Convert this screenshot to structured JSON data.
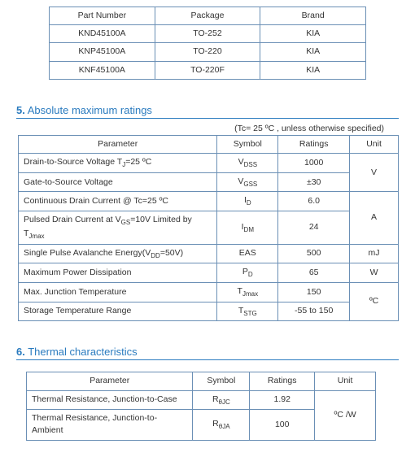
{
  "table1": {
    "headers": [
      "Part Number",
      "Package",
      "Brand"
    ],
    "rows": [
      [
        "KND45100A",
        "TO-252",
        "KIA"
      ],
      [
        "KNP45100A",
        "TO-220",
        "KIA"
      ],
      [
        "KNF45100A",
        "TO-220F",
        "KIA"
      ]
    ]
  },
  "section5": {
    "num": "5.",
    "title": "Absolute maximum ratings",
    "condition": "(Tc= 25 ºC , unless otherwise specified)"
  },
  "table2": {
    "headers": [
      "Parameter",
      "Symbol",
      "Ratings",
      "Unit"
    ],
    "rows": [
      {
        "param_html": "Drain-to-Source Voltage T<span class='sub'>J</span>=25 ºC",
        "sym_html": "V<span class='sub'>DSS</span>",
        "rating": "1000",
        "unit": "V",
        "unit_rowspan": 2
      },
      {
        "param_html": "Gate-to-Source Voltage",
        "sym_html": "V<span class='sub'>GSS</span>",
        "rating": "±30"
      },
      {
        "param_html": "Continuous Drain Current @ Tc=25 ºC",
        "sym_html": "I<span class='sub'>D</span>",
        "rating": "6.0",
        "unit": "A",
        "unit_rowspan": 2
      },
      {
        "param_html": "Pulsed Drain Current at V<span class='sub'>GS</span>=10V Limited by T<span class='sub'>Jmax</span>",
        "sym_html": "I<span class='sub'>DM</span>",
        "rating": "24"
      },
      {
        "param_html": "Single Pulse Avalanche Energy(V<span class='sub'>DD</span>=50V)",
        "sym_html": "EAS",
        "rating": "500",
        "unit": "mJ",
        "unit_rowspan": 1
      },
      {
        "param_html": "Maximum Power Dissipation",
        "sym_html": "P<span class='sub'>D</span>",
        "rating": "65",
        "unit": "W",
        "unit_rowspan": 1
      },
      {
        "param_html": "Max. Junction Temperature",
        "sym_html": "T<span class='sub'>Jmax</span>",
        "rating": "150",
        "unit": "ºC",
        "unit_rowspan": 2
      },
      {
        "param_html": "Storage Temperature Range",
        "sym_html": "T<span class='sub'>STG</span>",
        "rating": "-55 to 150"
      }
    ]
  },
  "section6": {
    "num": "6.",
    "title": "Thermal characteristics"
  },
  "table3": {
    "headers": [
      "Parameter",
      "Symbol",
      "Ratings",
      "Unit"
    ],
    "rows": [
      {
        "param_html": "Thermal Resistance, Junction-to-Case",
        "sym_html": "R<span class='sub'>θJC</span>",
        "rating": "1.92",
        "unit": "ºC /W",
        "unit_rowspan": 2
      },
      {
        "param_html": "Thermal Resistance, Junction-to-Ambient",
        "sym_html": "R<span class='sub'>θJA</span>",
        "rating": "100"
      }
    ]
  }
}
